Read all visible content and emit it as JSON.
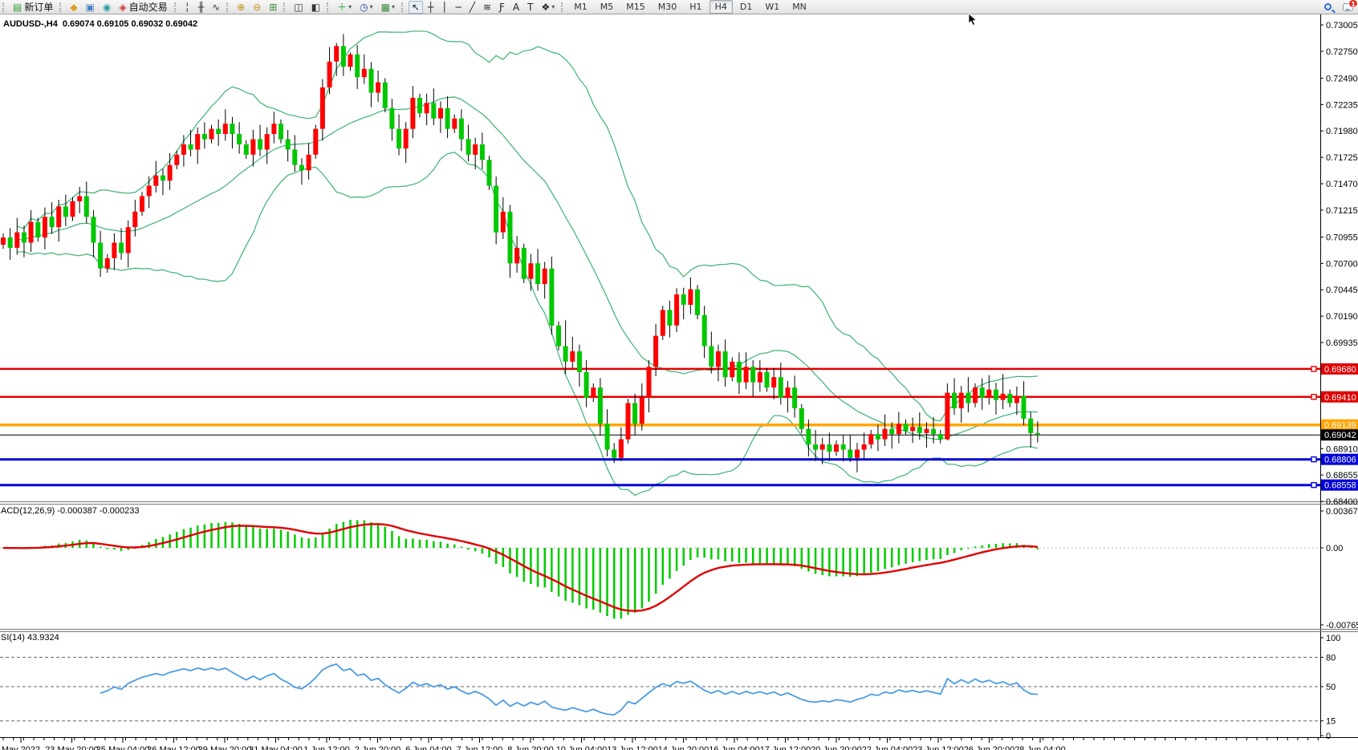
{
  "toolbar": {
    "groups": [
      [
        {
          "name": "new-order",
          "glyph": "▤",
          "color": "#2e9e2e",
          "label": "新订单"
        }
      ],
      [
        {
          "name": "market-watch",
          "glyph": "◆",
          "color": "#d8a020"
        },
        {
          "name": "data-window",
          "glyph": "▣",
          "color": "#4a7ebb"
        },
        {
          "name": "navigator",
          "glyph": "◉",
          "color": "#2e9e9e"
        },
        {
          "name": "autotrading",
          "glyph": "◈",
          "color": "#cc3333",
          "label": "自动交易"
        }
      ],
      [
        {
          "name": "bar-chart",
          "glyph": "╎",
          "color": "#333333"
        },
        {
          "name": "candlestick-chart",
          "glyph": "╫",
          "color": "#333333"
        },
        {
          "name": "line-chart",
          "glyph": "∿",
          "color": "#333333"
        }
      ],
      [
        {
          "name": "zoom-in",
          "glyph": "⊕",
          "color": "#b89010"
        },
        {
          "name": "zoom-out",
          "glyph": "⊖",
          "color": "#b89010"
        },
        {
          "name": "tile-windows",
          "glyph": "⊞",
          "color": "#3a8a3a"
        }
      ],
      [
        {
          "name": "auto-scroll",
          "glyph": "◫",
          "color": "#333333"
        },
        {
          "name": "chart-shift",
          "glyph": "◧",
          "color": "#333333"
        }
      ],
      [
        {
          "name": "indicators",
          "glyph": "＋",
          "color": "#2e9e2e",
          "dropdown": true
        },
        {
          "name": "periods",
          "glyph": "◷",
          "color": "#2255aa",
          "dropdown": true
        },
        {
          "name": "templates",
          "glyph": "▦",
          "color": "#3a8a3a",
          "dropdown": true
        }
      ],
      [
        {
          "name": "cursor",
          "glyph": "↖",
          "color": "#222222",
          "pressed": true
        },
        {
          "name": "crosshair",
          "glyph": "┼",
          "color": "#222222"
        },
        {
          "name": "vertical-line",
          "glyph": "│",
          "color": "#222222"
        },
        {
          "name": "horizontal-line",
          "glyph": "─",
          "color": "#222222"
        },
        {
          "name": "trendline",
          "glyph": "╱",
          "color": "#222222"
        },
        {
          "name": "equidistant-channel",
          "glyph": "≋",
          "color": "#222222"
        },
        {
          "name": "fibonacci",
          "glyph": "Ƒ",
          "color": "#222222"
        },
        {
          "name": "text",
          "glyph": "A",
          "color": "#222222"
        },
        {
          "name": "text-label",
          "glyph": "T",
          "color": "#222222"
        },
        {
          "name": "arrows-tool",
          "glyph": "❖",
          "color": "#222222",
          "dropdown": true
        }
      ]
    ],
    "timeframes": [
      "M1",
      "M5",
      "M15",
      "M30",
      "H1",
      "H4",
      "D1",
      "W1",
      "MN"
    ],
    "active_timeframe": "H4",
    "badge": "1"
  },
  "chart": {
    "symbol_period": "AUDUSD-,H4",
    "ohlc": "0.69074 0.69105 0.69032 0.69042"
  },
  "panes": {
    "macd": {
      "label": "ACD(12,26,9) -0.000387 -0.000233",
      "axis_labels": [
        "0.003672",
        "0.00",
        "-0.007656"
      ],
      "max": 0.003672,
      "min": -0.007656
    },
    "rsi": {
      "label": "SI(14) 43.9324",
      "axis_labels": [
        "100",
        "80",
        "50",
        "15",
        "0"
      ],
      "levels": [
        80,
        50,
        15
      ]
    }
  },
  "price_axis": {
    "ticks": [
      "0.73005",
      "0.72750",
      "0.72490",
      "0.72235",
      "0.71980",
      "0.71725",
      "0.71470",
      "0.71215",
      "0.70955",
      "0.70700",
      "0.70445",
      "0.70190",
      "0.69935",
      "0.68910",
      "0.68655",
      "0.68400"
    ],
    "boxes": [
      {
        "value": "0.69680",
        "price": 0.6968,
        "bg": "#e00000"
      },
      {
        "value": "0.69410",
        "price": 0.6941,
        "bg": "#e00000"
      },
      {
        "value": "0.69139",
        "price": 0.69139,
        "bg": "#ffa500"
      },
      {
        "value": "0.69042",
        "price": 0.69042,
        "bg": "#000000"
      },
      {
        "value": "0.68806",
        "price": 0.68806,
        "bg": "#0000d8"
      },
      {
        "value": "0.68558",
        "price": 0.68558,
        "bg": "#0000d8"
      }
    ]
  },
  "time_axis": {
    "labels": [
      "May 2022",
      "23 May 20:00",
      "25 May 04:00",
      "26 May 12:00",
      "29 May 20:00",
      "31 May 04:00",
      "1 Jun 12:00",
      "2 Jun 20:00",
      "6 Jun 04:00",
      "7 Jun 12:00",
      "8 Jun 20:00",
      "10 Jun 04:00",
      "13 Jun 12:00",
      "14 Jun 20:00",
      "16 Jun 04:00",
      "17 Jun 12:00",
      "20 Jun 20:00",
      "22 Jun 04:00",
      "23 Jun 12:00",
      "26 Jun 20:00",
      "28 Jun 04:00"
    ]
  },
  "chart_data": {
    "type": "candlestick",
    "symbol": "AUDUSD",
    "timeframe": "H4",
    "price_range": [
      0.684,
      0.73005
    ],
    "hlines": [
      {
        "price": 0.6968,
        "color": "#e00000",
        "width": 2.5,
        "marker": true
      },
      {
        "price": 0.6941,
        "color": "#e00000",
        "width": 2.5,
        "marker": true
      },
      {
        "price": 0.69139,
        "color": "#ffa500",
        "width": 3.5,
        "marker": false
      },
      {
        "price": 0.69042,
        "color": "#000000",
        "width": 1,
        "marker": false
      },
      {
        "price": 0.68806,
        "color": "#0000d8",
        "width": 3,
        "marker": true
      },
      {
        "price": 0.68558,
        "color": "#0000d8",
        "width": 3,
        "marker": true
      }
    ],
    "indicators": {
      "bollinger": {
        "period": 20,
        "deviation": 2,
        "color": "#3cb371"
      },
      "macd": {
        "fast": 12,
        "slow": 26,
        "signal": 9,
        "value": -0.000387,
        "signal_value": -0.000233
      },
      "rsi": {
        "period": 14,
        "value": 43.9324
      }
    },
    "candles": {
      "first_open": 0.7088,
      "closes": [
        0.7095,
        0.7085,
        0.71,
        0.709,
        0.711,
        0.7095,
        0.7115,
        0.7105,
        0.7125,
        0.7115,
        0.713,
        0.7135,
        0.7115,
        0.709,
        0.7065,
        0.7075,
        0.709,
        0.708,
        0.7105,
        0.712,
        0.7135,
        0.7145,
        0.7155,
        0.715,
        0.7165,
        0.7175,
        0.7185,
        0.718,
        0.7195,
        0.719,
        0.72,
        0.7195,
        0.7205,
        0.7195,
        0.7185,
        0.7175,
        0.719,
        0.718,
        0.7195,
        0.7205,
        0.719,
        0.718,
        0.7165,
        0.716,
        0.7175,
        0.72,
        0.724,
        0.7265,
        0.728,
        0.726,
        0.7272,
        0.725,
        0.7258,
        0.7235,
        0.7245,
        0.722,
        0.72,
        0.7181,
        0.72,
        0.723,
        0.7215,
        0.7225,
        0.721,
        0.722,
        0.72,
        0.721,
        0.719,
        0.7175,
        0.7185,
        0.717,
        0.7145,
        0.71,
        0.712,
        0.707,
        0.7085,
        0.7055,
        0.707,
        0.705,
        0.7065,
        0.701,
        0.699,
        0.6975,
        0.6985,
        0.6965,
        0.694,
        0.695,
        0.6915,
        0.689,
        0.6882,
        0.69,
        0.6935,
        0.6915,
        0.694,
        0.697,
        0.7,
        0.7025,
        0.701,
        0.704,
        0.703,
        0.7045,
        0.702,
        0.699,
        0.697,
        0.6985,
        0.696,
        0.6975,
        0.6955,
        0.697,
        0.6955,
        0.6965,
        0.695,
        0.696,
        0.694,
        0.695,
        0.693,
        0.691,
        0.6895,
        0.689,
        0.6895,
        0.6888,
        0.6895,
        0.689,
        0.6882,
        0.689,
        0.6895,
        0.6905,
        0.69,
        0.691,
        0.6905,
        0.6915,
        0.6908,
        0.6912,
        0.6906,
        0.691,
        0.6905,
        0.69,
        0.6945,
        0.693,
        0.6945,
        0.6935,
        0.695,
        0.694,
        0.6948,
        0.6938,
        0.6944,
        0.6935,
        0.6942,
        0.692,
        0.6906,
        0.69042
      ],
      "wick_overrides": {
        "14": {
          "l": 0.7057
        },
        "46": {
          "h": 0.7248
        },
        "48": {
          "h": 0.7283
        },
        "50": {
          "h": 0.7274
        },
        "81": {
          "h": 0.7015,
          "l": 0.6963
        },
        "88": {
          "l": 0.6877
        },
        "89": {
          "l": 0.6879
        },
        "97": {
          "h": 0.7046
        },
        "117": {
          "l": 0.6879
        },
        "122": {
          "l": 0.6878
        },
        "136": {
          "l": 0.6899
        },
        "139": {
          "h": 0.696
        },
        "144": {
          "h": 0.6963
        },
        "149": {
          "l": 0.6897
        }
      },
      "up_color": "#ff0000",
      "down_color": "#00c800"
    },
    "macd_colors": {
      "histogram": "#00cc00",
      "signal": "#e00000"
    },
    "rsi_color": "#4a9be6"
  }
}
